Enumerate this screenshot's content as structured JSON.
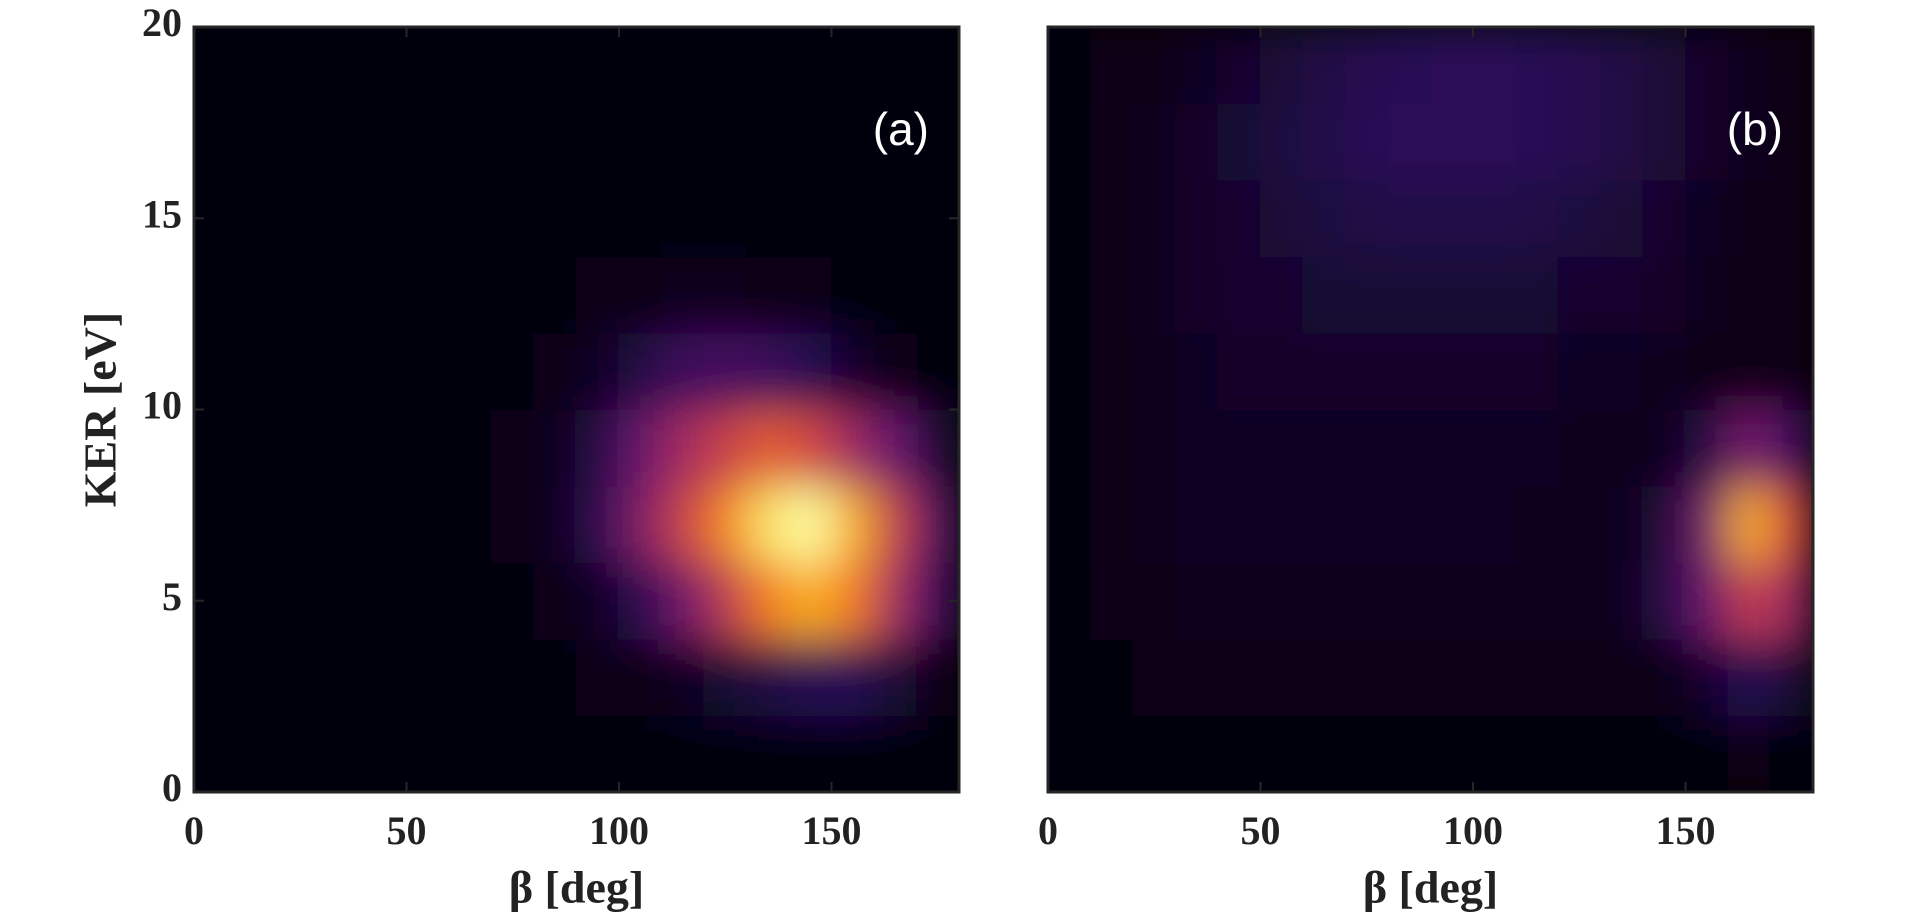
{
  "chart_data": [
    {
      "type": "heatmap",
      "annotation": "(a)",
      "xlabel": "β [deg]",
      "ylabel": "KER [eV]",
      "colormap": "inferno",
      "xlim": [
        0,
        180
      ],
      "ylim": [
        0,
        20
      ],
      "xticks": [
        0,
        50,
        100,
        150
      ],
      "yticks": [
        0,
        5,
        10,
        15,
        20
      ],
      "xbins": [
        0,
        10,
        20,
        30,
        40,
        50,
        60,
        70,
        80,
        90,
        100,
        110,
        120,
        130,
        140,
        150,
        160,
        170,
        180
      ],
      "ybins": [
        0,
        2,
        4,
        6,
        8,
        10,
        12,
        14,
        16,
        18,
        20
      ],
      "z": [
        [
          0.02,
          0.02,
          0.02,
          0.02,
          0.02,
          0.02,
          0.02,
          0.02,
          0.02,
          0.02,
          0.02,
          0.02,
          0.02,
          0.02,
          0.02,
          0.02,
          0.02,
          0.02
        ],
        [
          0.01,
          0.01,
          0.01,
          0.01,
          0.01,
          0.01,
          0.02,
          0.02,
          0.02,
          0.03,
          0.04,
          0.06,
          0.09,
          0.12,
          0.15,
          0.15,
          0.1,
          0.04
        ],
        [
          0.01,
          0.01,
          0.01,
          0.01,
          0.02,
          0.02,
          0.02,
          0.02,
          0.03,
          0.06,
          0.14,
          0.32,
          0.52,
          0.75,
          0.86,
          0.75,
          0.45,
          0.2
        ],
        [
          0.01,
          0.01,
          0.01,
          0.01,
          0.02,
          0.02,
          0.02,
          0.03,
          0.05,
          0.14,
          0.36,
          0.56,
          0.76,
          0.95,
          1,
          0.86,
          0.55,
          0.25
        ],
        [
          0.01,
          0.01,
          0.01,
          0.01,
          0.01,
          0.02,
          0.02,
          0.03,
          0.05,
          0.12,
          0.3,
          0.46,
          0.56,
          0.66,
          0.6,
          0.45,
          0.3,
          0.1
        ],
        [
          0.01,
          0.01,
          0.01,
          0.01,
          0.01,
          0.01,
          0.02,
          0.02,
          0.03,
          0.06,
          0.12,
          0.2,
          0.22,
          0.2,
          0.15,
          0.08,
          0.04,
          0.02
        ],
        [
          0.01,
          0.01,
          0.01,
          0.01,
          0.01,
          0.01,
          0.01,
          0.02,
          0.02,
          0.03,
          0.04,
          0.05,
          0.05,
          0.04,
          0.03,
          0.02,
          0.02,
          0.01
        ],
        [
          0.01,
          0.01,
          0.01,
          0.01,
          0.01,
          0.01,
          0.01,
          0.01,
          0.01,
          0.01,
          0.02,
          0.02,
          0.02,
          0.02,
          0.01,
          0.01,
          0.01,
          0.01
        ],
        [
          0.01,
          0.01,
          0.01,
          0.01,
          0.01,
          0.01,
          0.01,
          0.01,
          0.01,
          0.01,
          0.01,
          0.01,
          0.01,
          0.01,
          0.01,
          0.01,
          0.01,
          0.01
        ],
        [
          0.01,
          0.01,
          0.01,
          0.01,
          0.01,
          0.01,
          0.01,
          0.01,
          0.01,
          0.01,
          0.01,
          0.01,
          0.01,
          0.01,
          0.01,
          0.01,
          0.01,
          0.01
        ]
      ]
    },
    {
      "type": "heatmap",
      "annotation": "(b)",
      "xlabel": "β [deg]",
      "colormap": "inferno",
      "xlim": [
        0,
        180
      ],
      "ylim": [
        0,
        20
      ],
      "xticks": [
        0,
        50,
        100,
        150
      ],
      "xbins": [
        0,
        10,
        20,
        30,
        40,
        50,
        60,
        70,
        80,
        90,
        100,
        110,
        120,
        130,
        140,
        150,
        160,
        170,
        180
      ],
      "ybins": [
        0,
        2,
        4,
        6,
        8,
        10,
        12,
        14,
        16,
        18,
        20
      ],
      "z": [
        [
          0.02,
          0.02,
          0.02,
          0.02,
          0.02,
          0.02,
          0.02,
          0.02,
          0.02,
          0.02,
          0.02,
          0.02,
          0.02,
          0.02,
          0.02,
          0.02,
          0.03,
          0.02
        ],
        [
          0.02,
          0.02,
          0.03,
          0.03,
          0.03,
          0.03,
          0.03,
          0.03,
          0.03,
          0.03,
          0.03,
          0.03,
          0.03,
          0.03,
          0.04,
          0.08,
          0.15,
          0.1
        ],
        [
          0.02,
          0.03,
          0.04,
          0.05,
          0.05,
          0.05,
          0.05,
          0.05,
          0.05,
          0.05,
          0.05,
          0.05,
          0.05,
          0.05,
          0.12,
          0.3,
          0.55,
          0.45
        ],
        [
          0.02,
          0.03,
          0.05,
          0.06,
          0.06,
          0.06,
          0.06,
          0.06,
          0.06,
          0.06,
          0.06,
          0.05,
          0.05,
          0.05,
          0.1,
          0.32,
          0.85,
          0.6
        ],
        [
          0.02,
          0.03,
          0.05,
          0.06,
          0.06,
          0.06,
          0.06,
          0.06,
          0.06,
          0.06,
          0.06,
          0.06,
          0.05,
          0.05,
          0.05,
          0.12,
          0.35,
          0.22
        ],
        [
          0.02,
          0.03,
          0.05,
          0.06,
          0.07,
          0.07,
          0.07,
          0.07,
          0.07,
          0.07,
          0.07,
          0.07,
          0.06,
          0.06,
          0.05,
          0.04,
          0.04,
          0.03
        ],
        [
          0.02,
          0.03,
          0.05,
          0.07,
          0.08,
          0.08,
          0.09,
          0.09,
          0.09,
          0.09,
          0.09,
          0.09,
          0.08,
          0.08,
          0.07,
          0.05,
          0.04,
          0.03
        ],
        [
          0.02,
          0.03,
          0.05,
          0.07,
          0.08,
          0.1,
          0.11,
          0.12,
          0.13,
          0.13,
          0.13,
          0.12,
          0.11,
          0.1,
          0.08,
          0.06,
          0.04,
          0.03
        ],
        [
          0.02,
          0.03,
          0.05,
          0.07,
          0.09,
          0.11,
          0.13,
          0.15,
          0.16,
          0.16,
          0.16,
          0.15,
          0.14,
          0.12,
          0.1,
          0.07,
          0.05,
          0.03
        ],
        [
          0.02,
          0.03,
          0.04,
          0.06,
          0.08,
          0.1,
          0.12,
          0.14,
          0.15,
          0.16,
          0.16,
          0.15,
          0.14,
          0.12,
          0.1,
          0.07,
          0.05,
          0.03
        ]
      ]
    }
  ]
}
